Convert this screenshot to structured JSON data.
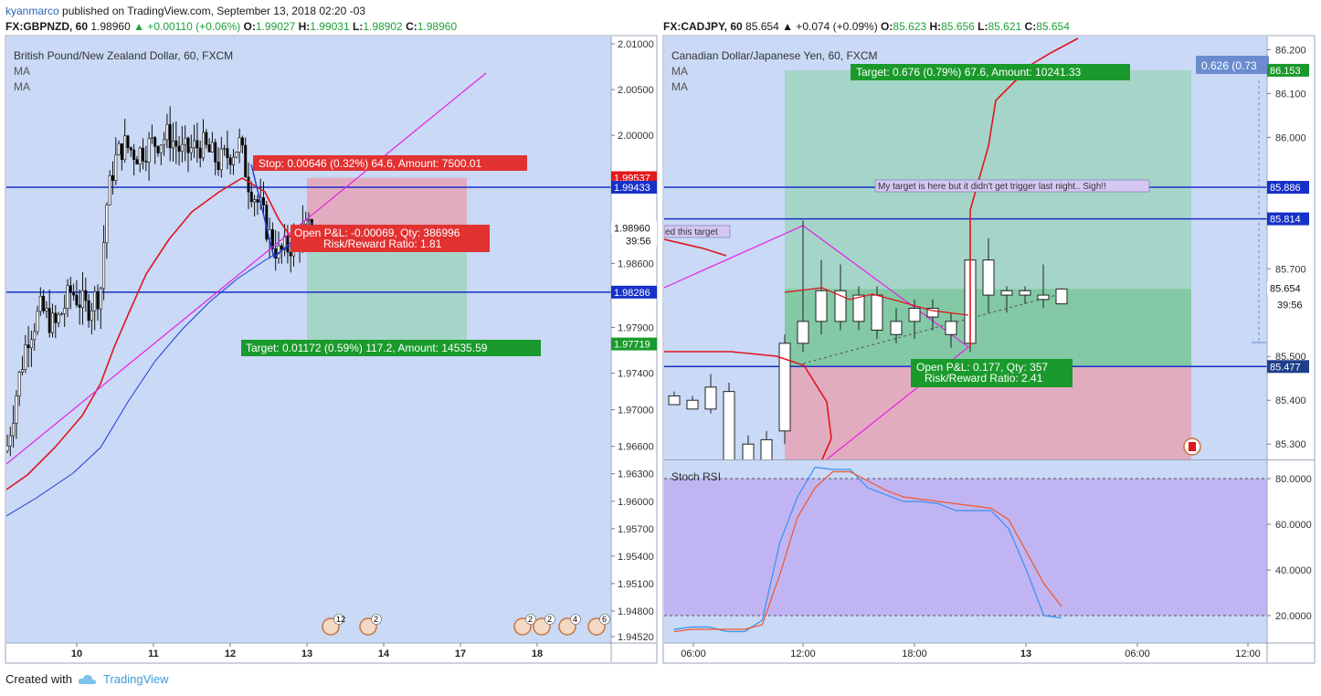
{
  "header": {
    "user": "kyanmarco",
    "published": "published on TradingView.com, September 13, 2018 02:20 -03"
  },
  "left": {
    "symbol_line": {
      "symbol": "FX:GBPNZD, 60",
      "price": "1.98960",
      "change": "▲ +0.00110 (+0.06%)",
      "o_label": "O:",
      "o": "1.99027",
      "h_label": "H:",
      "h": "1.99031",
      "l_label": "L:",
      "l": "1.98902",
      "c_label": "C:",
      "c": "1.98960"
    },
    "legend": [
      "British Pound/New Zealand Dollar, 60, FXCM",
      "MA",
      "MA"
    ],
    "stop_label": "Stop: 0.00646 (0.32%) 64.6, Amount: 7500.01",
    "open_label_1": "Open P&L: -0.00069, Qty: 386996",
    "open_label_2": "Risk/Reward Ratio: 1.81",
    "target_label": "Target: 0.01172 (0.59%) 117.2, Amount: 14535.59",
    "price_axis": [
      "2.01000",
      "2.00500",
      "2.00000",
      "1.99537",
      "1.99433",
      "1.98960",
      "39:56",
      "1.98600",
      "1.98286",
      "1.97900",
      "1.97719",
      "1.97400",
      "1.97000",
      "1.96600",
      "1.96300",
      "1.96000",
      "1.95700",
      "1.95400",
      "1.95100",
      "1.94800",
      "1.94520"
    ],
    "time_axis": [
      "10",
      "11",
      "12",
      "13",
      "14",
      "17",
      "18"
    ],
    "event_badges": [
      "12",
      "2",
      "2",
      "2",
      "4",
      "6"
    ]
  },
  "right": {
    "symbol_line": {
      "symbol": "FX:CADJPY, 60",
      "price": "85.654",
      "change": "▲ +0.074 (+0.09%)",
      "o_label": "O:",
      "o": "85.623",
      "h_label": "H:",
      "h": "85.656",
      "l_label": "L:",
      "l": "85.621",
      "c_label": "C:",
      "c": "85.654"
    },
    "legend": [
      "Canadian Dollar/Japanese Yen, 60, FXCM",
      "MA",
      "MA"
    ],
    "target_label": "Target: 0.676 (0.79%) 67.6, Amount: 10241.33",
    "note_label": "My target is here but it didn't get trigger last night.. Sigh!!",
    "left_note": "ed this target",
    "open_label_1": "Open P&L: 0.177, Qty: 357",
    "open_label_2": "Risk/Reward Ratio: 2.41",
    "measure_label": "0.626 (0.73",
    "price_axis": [
      "86.200",
      "86.153",
      "86.100",
      "86.000",
      "85.886",
      "85.814",
      "85.700",
      "85.654",
      "39:56",
      "85.500",
      "85.477",
      "85.400",
      "85.300"
    ],
    "stoch_title": "Stoch RSI",
    "stoch_axis": [
      "80.0000",
      "60.0000",
      "40.0000",
      "20.0000"
    ],
    "time_axis": [
      "06:00",
      "12:00",
      "18:00",
      "13",
      "06:00",
      "12:00"
    ]
  },
  "footer": {
    "created_with": "Created with",
    "brand": "TradingView"
  },
  "colors": {
    "pane_bg": "#c9d9f6",
    "up_candle": "#ffffff",
    "down_candle": "#000000",
    "ma_red": "#e0151d",
    "ma_blue": "#1a3bd6",
    "hline": "#1630c8",
    "trend_magenta": "#e620e6",
    "stop_box": "#e23131",
    "target_box": "#1a9a2c",
    "stoch_k": "#3a8ef0",
    "stoch_d": "#f0562a",
    "stoch_band": "#bca8f0"
  },
  "chart_data": [
    {
      "type": "candlestick",
      "title": "British Pound/New Zealand Dollar, 60, FXCM",
      "x_ticks": [
        "10",
        "11",
        "12",
        "13",
        "14",
        "17",
        "18"
      ],
      "ylim": [
        1.9445,
        2.0108
      ],
      "levels": [
        1.99433,
        1.98286
      ],
      "position": {
        "entry": 1.98891,
        "stop": 1.99537,
        "target": 1.97719
      },
      "last": 1.9896
    },
    {
      "type": "candlestick",
      "title": "Canadian Dollar/Japanese Yen, 60, FXCM",
      "x_ticks": [
        "06:00",
        "12:00",
        "18:00",
        "13",
        "06:00",
        "12:00"
      ],
      "ylim": [
        85.265,
        86.23
      ],
      "levels": [
        85.886,
        85.814,
        85.477
      ],
      "position": {
        "entry": 85.477,
        "target": 86.153
      },
      "last": 85.654
    },
    {
      "type": "line",
      "title": "Stoch RSI",
      "ylim": [
        8,
        88
      ],
      "bands": [
        20,
        80
      ],
      "series": [
        {
          "name": "",
          "values": [
            14,
            15,
            15,
            13,
            13,
            18,
            52,
            72,
            85,
            84,
            84,
            76,
            73,
            70,
            70,
            69,
            66,
            66,
            66,
            58,
            40,
            20,
            19
          ]
        },
        {
          "name": "",
          "values": [
            13,
            14,
            14,
            14,
            14,
            16,
            38,
            63,
            76,
            83,
            83,
            79,
            75,
            72,
            71,
            70,
            69,
            68,
            67,
            62,
            48,
            34,
            24
          ]
        }
      ]
    }
  ]
}
